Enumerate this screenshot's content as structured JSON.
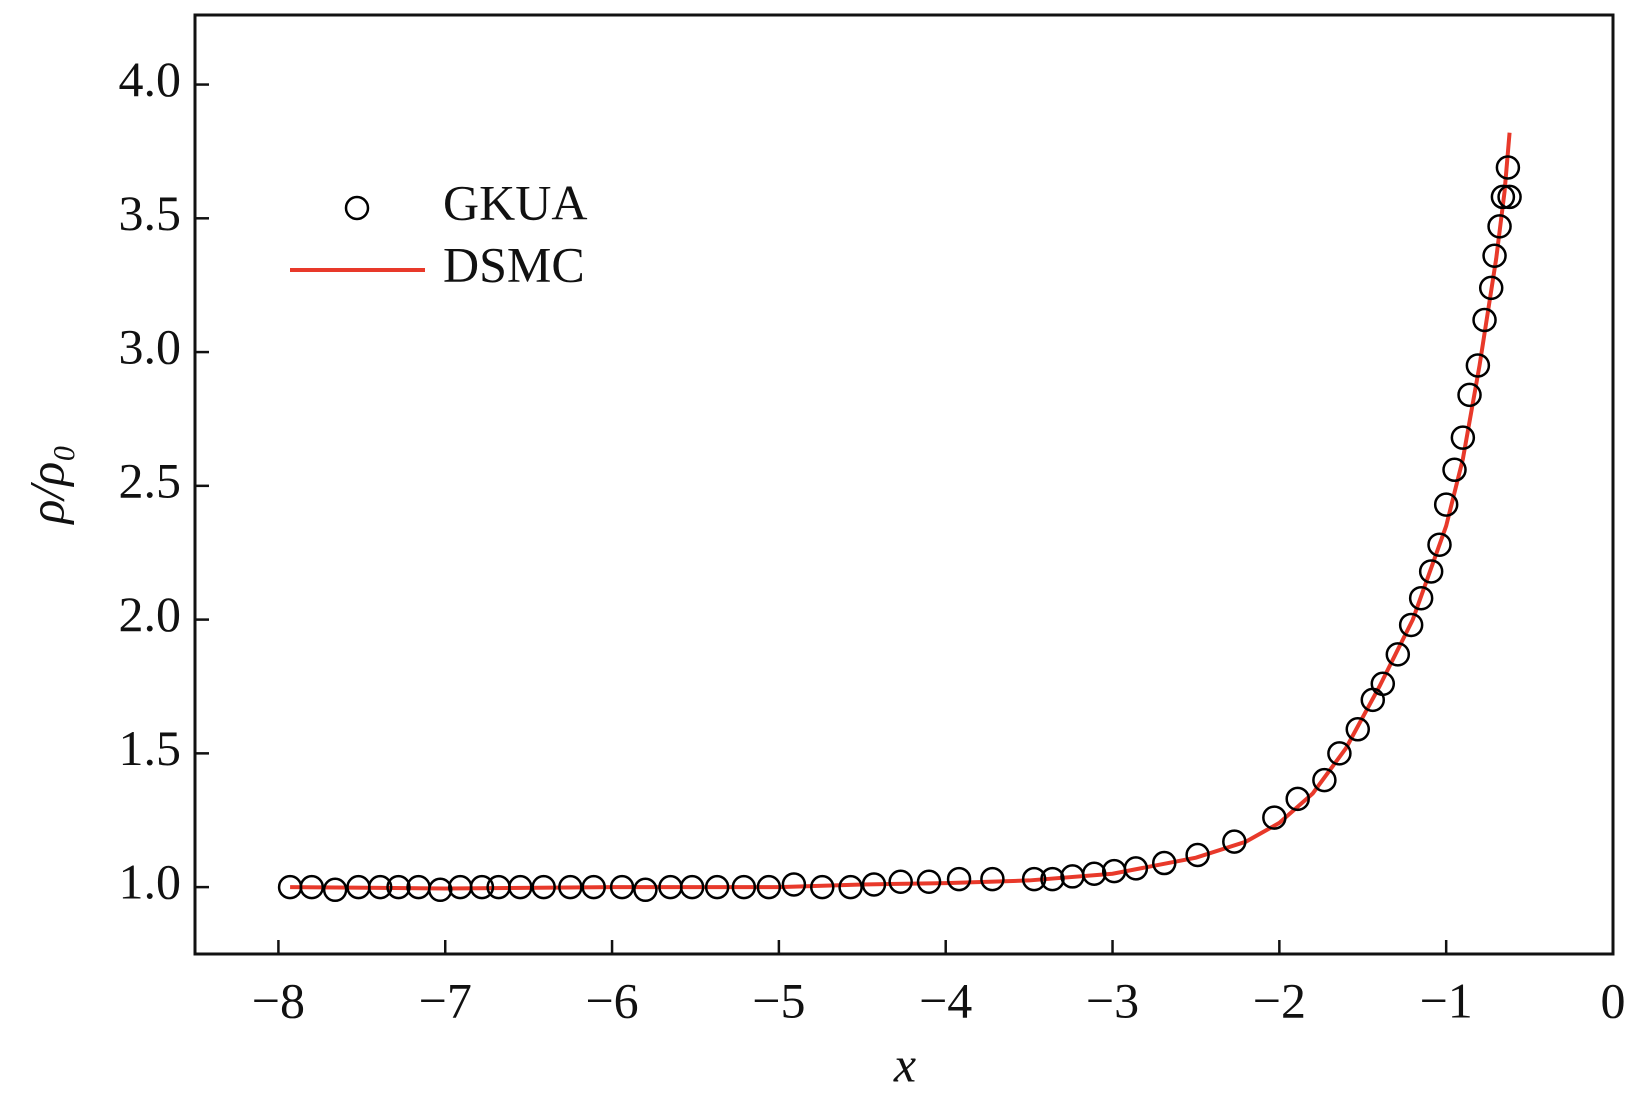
{
  "chart_data": {
    "type": "line",
    "x_label": "x",
    "y_label": "ρ/ρ₀",
    "xlim": [
      -8.5,
      0
    ],
    "ylim": [
      0.75,
      4.26
    ],
    "xticks": [
      {
        "value": -8,
        "label": "−8"
      },
      {
        "value": -7,
        "label": "−7"
      },
      {
        "value": -6,
        "label": "−6"
      },
      {
        "value": -5,
        "label": "−5"
      },
      {
        "value": -4,
        "label": "−4"
      },
      {
        "value": -3,
        "label": "−3"
      },
      {
        "value": -2,
        "label": "−2"
      },
      {
        "value": -1,
        "label": "−1"
      },
      0
    ],
    "yticks": [
      {
        "value": 1,
        "label": "1.0"
      },
      {
        "value": 1.5,
        "label": "1.5"
      },
      {
        "value": 2,
        "label": "2.0"
      },
      {
        "value": 2.5,
        "label": "2.5"
      },
      {
        "value": 3,
        "label": "3.0"
      },
      {
        "value": 3.5,
        "label": "3.5"
      },
      {
        "value": 4,
        "label": "4.0"
      }
    ],
    "legend": "upper left",
    "series": [
      {
        "name": "GKUA",
        "kind": "scatter",
        "color": "#000000",
        "x": [
          -7.93,
          -7.8,
          -7.66,
          -7.52,
          -7.39,
          -7.28,
          -7.16,
          -7.03,
          -6.91,
          -6.78,
          -6.68,
          -6.55,
          -6.41,
          -6.25,
          -6.11,
          -5.94,
          -5.8,
          -5.65,
          -5.52,
          -5.37,
          -5.21,
          -5.06,
          -4.91,
          -4.74,
          -4.57,
          -4.43,
          -4.27,
          -4.1,
          -3.92,
          -3.72,
          -3.47,
          -3.36,
          -3.24,
          -3.11,
          -2.99,
          -2.86,
          -2.69,
          -2.49,
          -2.27,
          -2.03,
          -1.89,
          -1.73,
          -1.64,
          -1.53,
          -1.44,
          -1.38,
          -1.29,
          -1.21,
          -1.15,
          -1.09,
          -1.04,
          -1.0,
          -0.95,
          -0.9,
          -0.86,
          -0.81,
          -0.77,
          -0.73,
          -0.71,
          -0.68,
          -0.66,
          -0.63,
          -0.62
        ],
        "values": [
          1.0,
          1.0,
          0.99,
          1.0,
          1.0,
          1.0,
          1.0,
          0.99,
          1.0,
          1.0,
          1.0,
          1.0,
          1.0,
          1.0,
          1.0,
          1.0,
          0.99,
          1.0,
          1.0,
          1.0,
          1.0,
          1.0,
          1.01,
          1.0,
          1.0,
          1.01,
          1.02,
          1.02,
          1.03,
          1.03,
          1.03,
          1.03,
          1.04,
          1.05,
          1.06,
          1.07,
          1.09,
          1.12,
          1.17,
          1.26,
          1.33,
          1.4,
          1.5,
          1.59,
          1.7,
          1.76,
          1.87,
          1.98,
          2.08,
          2.18,
          2.28,
          2.43,
          2.56,
          2.68,
          2.84,
          2.95,
          3.12,
          3.24,
          3.36,
          3.47,
          3.58,
          3.69,
          3.58
        ]
      },
      {
        "name": "DSMC",
        "kind": "line",
        "color": "#e8392a",
        "x": [
          -7.93,
          -7.0,
          -6.0,
          -5.0,
          -4.5,
          -4.0,
          -3.5,
          -3.0,
          -2.5,
          -2.2,
          -2.0,
          -1.8,
          -1.6,
          -1.4,
          -1.2,
          -1.0,
          -0.9,
          -0.8,
          -0.7,
          -0.65,
          -0.62
        ],
        "values": [
          1.0,
          0.995,
          1.0,
          1.0,
          1.01,
          1.015,
          1.025,
          1.05,
          1.11,
          1.17,
          1.24,
          1.35,
          1.52,
          1.75,
          2.0,
          2.35,
          2.6,
          2.95,
          3.35,
          3.6,
          3.82
        ]
      }
    ]
  }
}
